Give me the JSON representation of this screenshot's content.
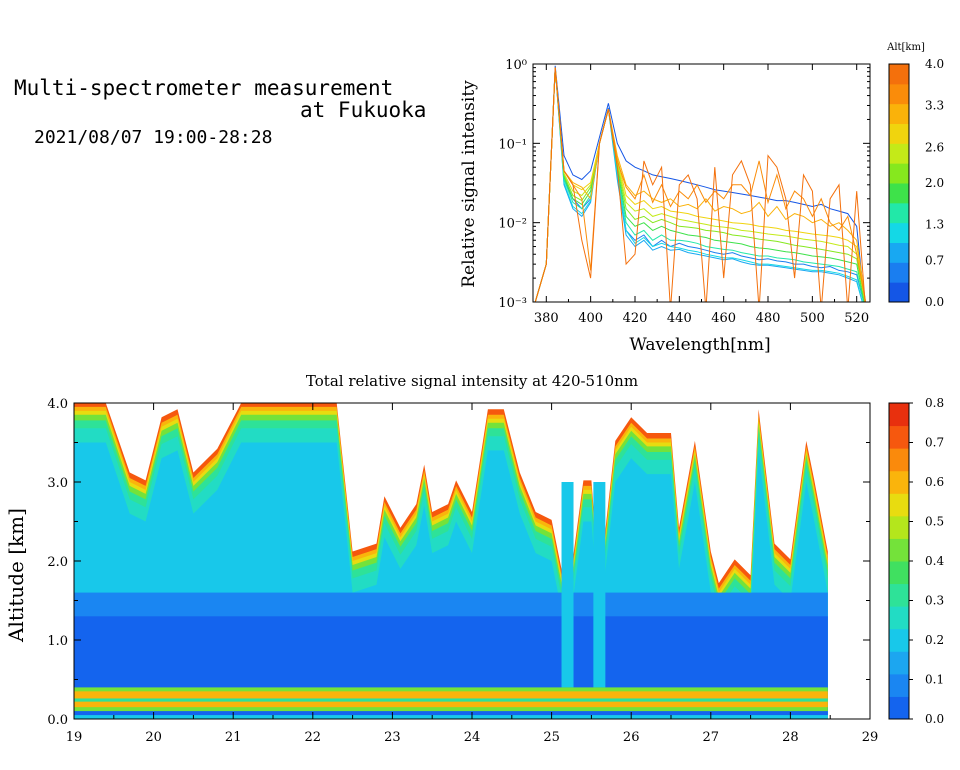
{
  "header": {
    "title_line1": "Multi-spectrometer measurement",
    "title_line2": "at Fukuoka",
    "datetime": "2021/08/07 19:00-28:28"
  },
  "colors": {
    "alt_scale": [
      "#1456e6",
      "#1a7ef0",
      "#18a8f2",
      "#14d8e6",
      "#22e8a8",
      "#3ee24a",
      "#86e81e",
      "#c4ea18",
      "#f0d40e",
      "#fab20a",
      "#fa8c0a",
      "#f4700c"
    ],
    "intensity_scale": [
      "#1464ee",
      "#1a86f2",
      "#1ca6f0",
      "#18c8ea",
      "#22dcc4",
      "#2ee298",
      "#40e060",
      "#74e23a",
      "#b4e61c",
      "#e8dc10",
      "#fab40c",
      "#fa8a0c",
      "#f6580e",
      "#e8300e"
    ]
  },
  "chart_data": [
    {
      "type": "line",
      "title": "",
      "xlabel": "Wavelength[nm]",
      "ylabel": "Relative signal intensity",
      "yscale": "log",
      "xlim": [
        374,
        526
      ],
      "ylim": [
        0.001,
        1
      ],
      "x_ticks": [
        380,
        400,
        420,
        440,
        460,
        480,
        500,
        520
      ],
      "y_ticks": [
        {
          "value": 0.001,
          "label": "10⁻³"
        },
        {
          "value": 0.01,
          "label": "10⁻²"
        },
        {
          "value": 0.1,
          "label": "10⁻¹"
        },
        {
          "value": 1,
          "label": "10⁰"
        }
      ],
      "colorbar": {
        "title": "Alt[km]",
        "labels": [
          "4.0",
          "3.3",
          "2.6",
          "2.0",
          "1.3",
          "0.7",
          "0.0"
        ],
        "range": [
          0,
          4
        ]
      },
      "x": [
        374,
        380,
        384,
        388,
        392,
        396,
        400,
        404,
        408,
        412,
        416,
        420,
        424,
        428,
        432,
        436,
        440,
        444,
        448,
        452,
        456,
        460,
        464,
        468,
        472,
        476,
        480,
        484,
        488,
        492,
        496,
        500,
        504,
        508,
        512,
        516,
        520,
        524
      ],
      "series": [
        {
          "color_key": 0,
          "values": [
            0.0008,
            0.003,
            0.95,
            0.07,
            0.04,
            0.035,
            0.045,
            0.12,
            0.32,
            0.1,
            0.06,
            0.05,
            0.045,
            0.04,
            0.038,
            0.036,
            0.034,
            0.032,
            0.03,
            0.028,
            0.026,
            0.025,
            0.024,
            0.023,
            0.022,
            0.021,
            0.02,
            0.019,
            0.019,
            0.018,
            0.017,
            0.016,
            0.017,
            0.015,
            0.014,
            0.013,
            0.009,
            0.0007
          ]
        },
        {
          "color_key": 1,
          "values": [
            0.0008,
            0.003,
            0.9,
            0.035,
            0.02,
            0.015,
            0.02,
            0.1,
            0.28,
            0.04,
            0.008,
            0.006,
            0.007,
            0.005,
            0.006,
            0.005,
            0.0055,
            0.005,
            0.0048,
            0.0045,
            0.0042,
            0.004,
            0.0042,
            0.0038,
            0.0036,
            0.0034,
            0.0035,
            0.0033,
            0.0032,
            0.003,
            0.003,
            0.0028,
            0.0027,
            0.0028,
            0.0025,
            0.0024,
            0.0022,
            0.0008
          ]
        },
        {
          "color_key": 2,
          "values": [
            0.0008,
            0.003,
            0.9,
            0.03,
            0.015,
            0.012,
            0.018,
            0.1,
            0.27,
            0.035,
            0.007,
            0.005,
            0.006,
            0.0045,
            0.005,
            0.0045,
            0.0046,
            0.0042,
            0.004,
            0.0038,
            0.0036,
            0.0034,
            0.0035,
            0.0032,
            0.003,
            0.0029,
            0.0029,
            0.0028,
            0.0027,
            0.0026,
            0.0025,
            0.0024,
            0.0024,
            0.0023,
            0.0022,
            0.002,
            0.0018,
            0.0007
          ]
        },
        {
          "color_key": 3,
          "values": [
            0.0008,
            0.003,
            0.9,
            0.032,
            0.016,
            0.013,
            0.019,
            0.1,
            0.27,
            0.04,
            0.008,
            0.0055,
            0.0065,
            0.005,
            0.0055,
            0.005,
            0.0048,
            0.0045,
            0.0043,
            0.004,
            0.0038,
            0.0036,
            0.0036,
            0.0034,
            0.0032,
            0.003,
            0.003,
            0.0029,
            0.0028,
            0.0027,
            0.0026,
            0.0025,
            0.0025,
            0.0024,
            0.0023,
            0.0021,
            0.0019,
            0.0007
          ]
        },
        {
          "color_key": 4,
          "values": [
            0.0008,
            0.003,
            0.9,
            0.035,
            0.018,
            0.015,
            0.022,
            0.1,
            0.27,
            0.045,
            0.01,
            0.007,
            0.008,
            0.006,
            0.007,
            0.006,
            0.006,
            0.0058,
            0.0055,
            0.005,
            0.0048,
            0.0046,
            0.0045,
            0.0042,
            0.004,
            0.0038,
            0.0038,
            0.0036,
            0.0035,
            0.0034,
            0.0032,
            0.0031,
            0.003,
            0.0029,
            0.0028,
            0.0026,
            0.0024,
            0.0008
          ]
        },
        {
          "color_key": 5,
          "values": [
            0.0008,
            0.003,
            0.9,
            0.038,
            0.02,
            0.017,
            0.025,
            0.1,
            0.27,
            0.05,
            0.012,
            0.009,
            0.01,
            0.008,
            0.009,
            0.008,
            0.0075,
            0.007,
            0.0068,
            0.0065,
            0.006,
            0.0058,
            0.0056,
            0.0054,
            0.005,
            0.0048,
            0.0047,
            0.0045,
            0.0043,
            0.0042,
            0.004,
            0.0038,
            0.0037,
            0.0036,
            0.0034,
            0.0032,
            0.003,
            0.0008
          ]
        },
        {
          "color_key": 6,
          "values": [
            0.0008,
            0.003,
            0.9,
            0.04,
            0.022,
            0.019,
            0.028,
            0.1,
            0.27,
            0.055,
            0.015,
            0.011,
            0.012,
            0.01,
            0.011,
            0.01,
            0.009,
            0.0088,
            0.0085,
            0.008,
            0.0078,
            0.0075,
            0.007,
            0.0068,
            0.0065,
            0.0062,
            0.006,
            0.0058,
            0.0055,
            0.0052,
            0.005,
            0.0048,
            0.0046,
            0.0044,
            0.0042,
            0.004,
            0.0035,
            0.0009
          ]
        },
        {
          "color_key": 7,
          "values": [
            0.0008,
            0.003,
            0.9,
            0.042,
            0.025,
            0.022,
            0.03,
            0.1,
            0.27,
            0.06,
            0.018,
            0.014,
            0.015,
            0.012,
            0.013,
            0.012,
            0.011,
            0.0105,
            0.01,
            0.0095,
            0.009,
            0.0088,
            0.0085,
            0.008,
            0.0078,
            0.0075,
            0.0072,
            0.007,
            0.0068,
            0.0065,
            0.0062,
            0.006,
            0.0058,
            0.0055,
            0.0052,
            0.005,
            0.004,
            0.0009
          ]
        },
        {
          "color_key": 8,
          "values": [
            0.0008,
            0.003,
            0.9,
            0.045,
            0.03,
            0.026,
            0.032,
            0.1,
            0.27,
            0.065,
            0.022,
            0.017,
            0.019,
            0.015,
            0.016,
            0.014,
            0.0135,
            0.013,
            0.012,
            0.0115,
            0.011,
            0.0105,
            0.01,
            0.0098,
            0.0095,
            0.009,
            0.0088,
            0.0085,
            0.008,
            0.0078,
            0.0075,
            0.0072,
            0.007,
            0.0068,
            0.0065,
            0.006,
            0.005,
            0.001
          ]
        },
        {
          "color_key": 9,
          "values": [
            0.0008,
            0.003,
            0.9,
            0.045,
            0.032,
            0.028,
            0.02,
            0.1,
            0.27,
            0.07,
            0.03,
            0.022,
            0.025,
            0.02,
            0.018,
            0.02,
            0.016,
            0.017,
            0.015,
            0.02,
            0.014,
            0.016,
            0.015,
            0.013,
            0.014,
            0.018,
            0.012,
            0.016,
            0.011,
            0.013,
            0.012,
            0.01,
            0.011,
            0.009,
            0.01,
            0.008,
            0.006,
            0.001
          ]
        },
        {
          "color_key": 10,
          "values": [
            0.0008,
            0.003,
            0.9,
            0.045,
            0.03,
            0.02,
            0.0025,
            0.1,
            0.27,
            0.06,
            0.028,
            0.02,
            0.04,
            0.018,
            0.03,
            0.016,
            0.025,
            0.02,
            0.03,
            0.018,
            0.025,
            0.02,
            0.03,
            0.03,
            0.022,
            0.06,
            0.018,
            0.04,
            0.015,
            0.025,
            0.02,
            0.012,
            0.02,
            0.01,
            0.008,
            0.012,
            0.004,
            0.001
          ]
        },
        {
          "color_key": 11,
          "values": [
            0.0008,
            0.003,
            0.9,
            0.045,
            0.03,
            0.006,
            0.002,
            0.1,
            0.27,
            0.05,
            0.003,
            0.004,
            0.06,
            0.03,
            0.05,
            0.0008,
            0.03,
            0.04,
            0.02,
            0.0008,
            0.05,
            0.002,
            0.04,
            0.06,
            0.03,
            0.0008,
            0.07,
            0.05,
            0.02,
            0.002,
            0.04,
            0.025,
            0.0008,
            0.02,
            0.03,
            0.0008,
            0.025,
            0.0008
          ]
        }
      ]
    },
    {
      "type": "heatmap",
      "title": "Total relative signal intensity at 420-510nm",
      "xlabel": "",
      "ylabel": "Altitude [km]",
      "xlim": [
        19,
        29
      ],
      "ylim": [
        0,
        4
      ],
      "x_ticks": [
        19,
        20,
        21,
        22,
        23,
        24,
        25,
        26,
        27,
        28,
        29
      ],
      "y_ticks": [
        {
          "value": 0,
          "label": "0.0"
        },
        {
          "value": 1,
          "label": "1.0"
        },
        {
          "value": 2,
          "label": "2.0"
        },
        {
          "value": 3,
          "label": "3.0"
        },
        {
          "value": 4,
          "label": "4.0"
        }
      ],
      "colorbar": {
        "labels": [
          "0.8",
          "0.7",
          "0.6",
          "0.5",
          "0.4",
          "0.3",
          "0.2",
          "0.1",
          "0.0"
        ],
        "range": [
          0,
          0.8
        ]
      },
      "data_end_hour": 28.47,
      "cloud_base_profile": [
        [
          19.0,
          4.0
        ],
        [
          19.4,
          4.0
        ],
        [
          19.7,
          3.1
        ],
        [
          19.9,
          3.0
        ],
        [
          20.1,
          3.8
        ],
        [
          20.3,
          3.9
        ],
        [
          20.5,
          3.1
        ],
        [
          20.8,
          3.4
        ],
        [
          21.1,
          4.0
        ],
        [
          22.3,
          4.0
        ],
        [
          22.5,
          2.1
        ],
        [
          22.8,
          2.2
        ],
        [
          22.9,
          2.8
        ],
        [
          23.1,
          2.4
        ],
        [
          23.3,
          2.7
        ],
        [
          23.4,
          3.2
        ],
        [
          23.5,
          2.6
        ],
        [
          23.7,
          2.7
        ],
        [
          23.8,
          3.0
        ],
        [
          24.0,
          2.6
        ],
        [
          24.2,
          3.9
        ],
        [
          24.4,
          3.9
        ],
        [
          24.6,
          3.1
        ],
        [
          24.8,
          2.6
        ],
        [
          25.0,
          2.5
        ],
        [
          25.2,
          1.5
        ],
        [
          25.4,
          3.0
        ],
        [
          25.5,
          3.0
        ],
        [
          25.6,
          1.7
        ],
        [
          25.8,
          3.5
        ],
        [
          26.0,
          3.8
        ],
        [
          26.2,
          3.6
        ],
        [
          26.5,
          3.6
        ],
        [
          26.6,
          2.4
        ],
        [
          26.8,
          3.5
        ],
        [
          27.0,
          2.1
        ],
        [
          27.1,
          1.7
        ],
        [
          27.3,
          2.0
        ],
        [
          27.5,
          1.8
        ],
        [
          27.6,
          3.9
        ],
        [
          27.8,
          2.2
        ],
        [
          28.0,
          2.0
        ],
        [
          28.2,
          3.5
        ],
        [
          28.3,
          3.0
        ],
        [
          28.47,
          2.1
        ]
      ],
      "boundary_layer": [
        {
          "range": [
            19.0,
            28.47
          ],
          "level": 0.08,
          "top": 1.6
        },
        {
          "range": [
            19.0,
            28.47
          ],
          "level": 0.05,
          "top": 1.3
        }
      ],
      "surface_band": {
        "alt_range": [
          0.15,
          0.35
        ],
        "value": 0.6
      }
    }
  ]
}
